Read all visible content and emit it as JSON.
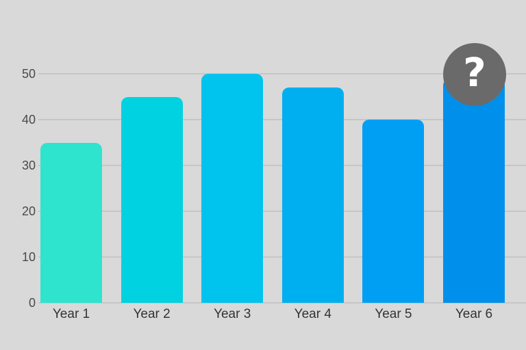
{
  "chart_data": {
    "type": "bar",
    "title": "",
    "xlabel": "",
    "ylabel": "",
    "categories": [
      "Year 1",
      "Year 2",
      "Year 3",
      "Year 4",
      "Year 5",
      "Year 6"
    ],
    "values": [
      35,
      45,
      50,
      47,
      40,
      49
    ],
    "bar_colors": [
      "#2ee4cf",
      "#00d2e2",
      "#00c3ee",
      "#00aff0",
      "#009ff4",
      "#0090ec"
    ],
    "ylim": [
      0,
      50
    ],
    "yticks": [
      0,
      10,
      20,
      30,
      40,
      50
    ],
    "grid": "horizontal",
    "legend": "none",
    "annotation": {
      "type": "question-mark-badge",
      "on_category": "Year 6",
      "glyph": "?",
      "note": "Year 6 bar top is obscured by a gray circle with a white question mark; its value is presented as unknown"
    }
  },
  "colors": {
    "background": "#d9d9d9",
    "gridline": "#c6c6c6",
    "y_tick_label": "#4a4a4a",
    "x_tick_label": "#333333",
    "badge_circle": "#6a6a6a",
    "badge_glyph": "#ffffff"
  }
}
